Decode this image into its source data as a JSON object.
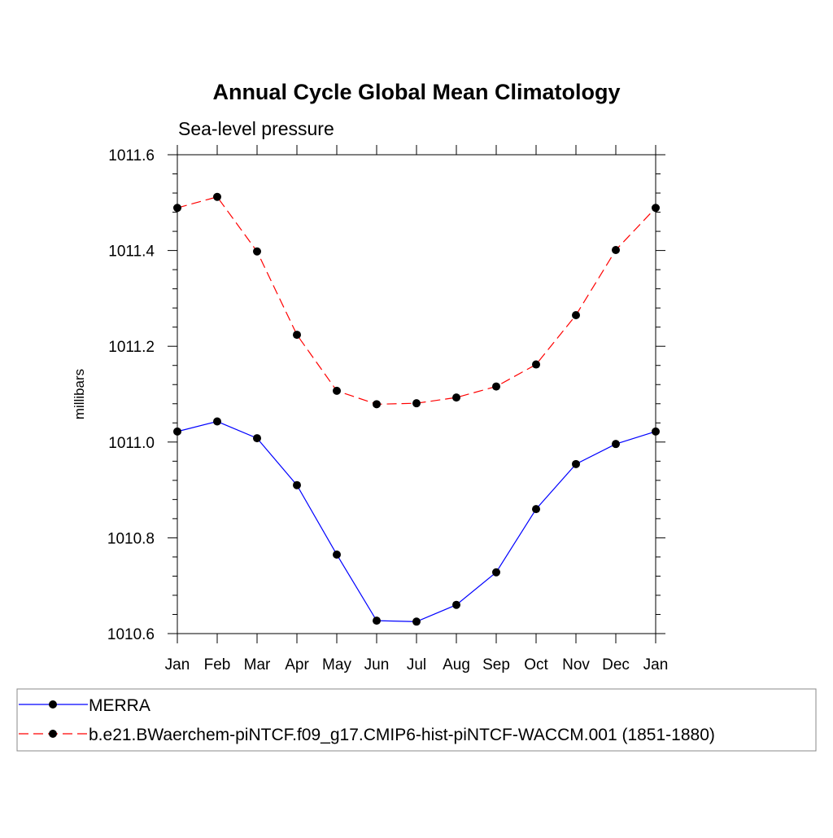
{
  "chart_data": {
    "type": "line",
    "title": "Annual Cycle Global Mean Climatology",
    "subtitle": "Sea-level pressure",
    "xlabel": "",
    "ylabel": "millibars",
    "categories": [
      "Jan",
      "Feb",
      "Mar",
      "Apr",
      "May",
      "Jun",
      "Jul",
      "Aug",
      "Sep",
      "Oct",
      "Nov",
      "Dec",
      "Jan"
    ],
    "ylim": [
      1010.6,
      1011.6
    ],
    "yticks": [
      "1010.6",
      "1010.8",
      "1011.0",
      "1011.2",
      "1011.4",
      "1011.6"
    ],
    "ytick_values": [
      1010.6,
      1010.8,
      1011.0,
      1011.2,
      1011.4,
      1011.6
    ],
    "grid": false,
    "legend_position": "bottom",
    "series": [
      {
        "name": "MERRA",
        "color": "#0000ff",
        "line_style": "solid",
        "marker": "filled-circle",
        "values": [
          1011.022,
          1011.043,
          1011.008,
          1010.91,
          1010.765,
          1010.627,
          1010.625,
          1010.66,
          1010.728,
          1010.86,
          1010.954,
          1010.996,
          1011.022
        ]
      },
      {
        "name": "b.e21.BWaerchem-piNTCF.f09_g17.CMIP6-hist-piNTCF-WACCM.001 (1851-1880)",
        "color": "#ff0000",
        "line_style": "dashed",
        "marker": "filled-circle",
        "values": [
          1011.489,
          1011.512,
          1011.398,
          1011.224,
          1011.107,
          1011.079,
          1011.081,
          1011.093,
          1011.116,
          1011.162,
          1011.265,
          1011.401,
          1011.489
        ]
      }
    ]
  }
}
